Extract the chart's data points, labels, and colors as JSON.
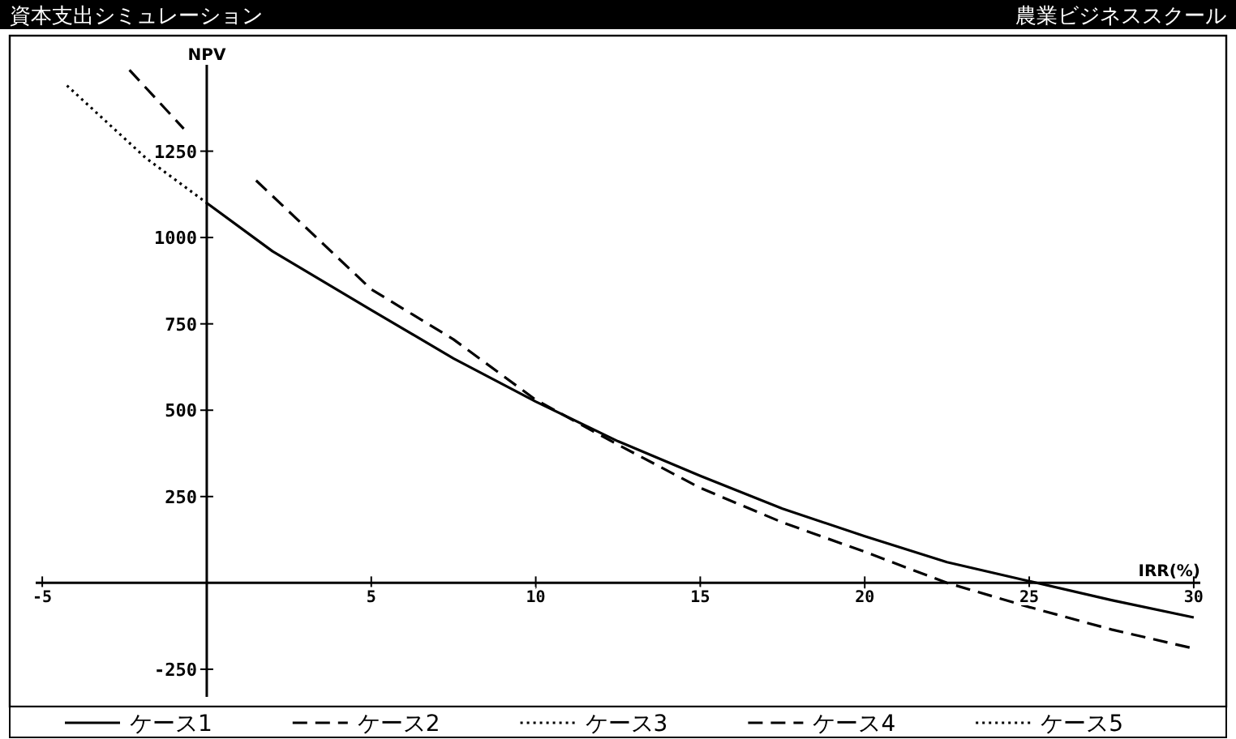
{
  "chart_data": {
    "type": "line",
    "title": "資本支出シミュレーション",
    "subtitle": "農業ビジネススクール",
    "xlabel": "IRR(%)",
    "ylabel": "NPV",
    "xlim": [
      -5.2,
      30.2
    ],
    "ylim": [
      -330,
      1500
    ],
    "xticks": [
      -5,
      5,
      10,
      15,
      20,
      25,
      30
    ],
    "yticks": [
      -250,
      250,
      500,
      750,
      1000,
      1250
    ],
    "grid": false,
    "legend": "bottom",
    "marker": "none",
    "series": [
      {
        "name": "ケース1",
        "color": "#000000",
        "line_style": "solid",
        "x": [
          0,
          2,
          5,
          7.5,
          10,
          12.5,
          15,
          17.5,
          20,
          22.5,
          25,
          27.5,
          30
        ],
        "values": [
          1100,
          960,
          790,
          650,
          525,
          410,
          310,
          215,
          135,
          60,
          5,
          -50,
          -100
        ]
      },
      {
        "name": "ケース2",
        "color": "#000000",
        "line_style": "dashed",
        "x": [
          1.5,
          5,
          7.5,
          10,
          12.5,
          15,
          17.5,
          20,
          22.5,
          25,
          27.5,
          30
        ],
        "values": [
          1165,
          850,
          705,
          530,
          400,
          275,
          175,
          90,
          0,
          -70,
          -135,
          -190
        ]
      },
      {
        "name": "ケース3",
        "color": "#000000",
        "line_style": "dotted",
        "x": [
          -4.25,
          -1.85,
          0
        ],
        "values": [
          1440,
          1230,
          1100
        ]
      },
      {
        "name": "ケース4",
        "color": "#000000",
        "line_style": "dashed",
        "x": [
          -2.35,
          -0.7
        ],
        "values": [
          1485,
          1315
        ]
      },
      {
        "name": "ケース5",
        "color": "#000000",
        "line_style": "dotted"
      }
    ]
  }
}
